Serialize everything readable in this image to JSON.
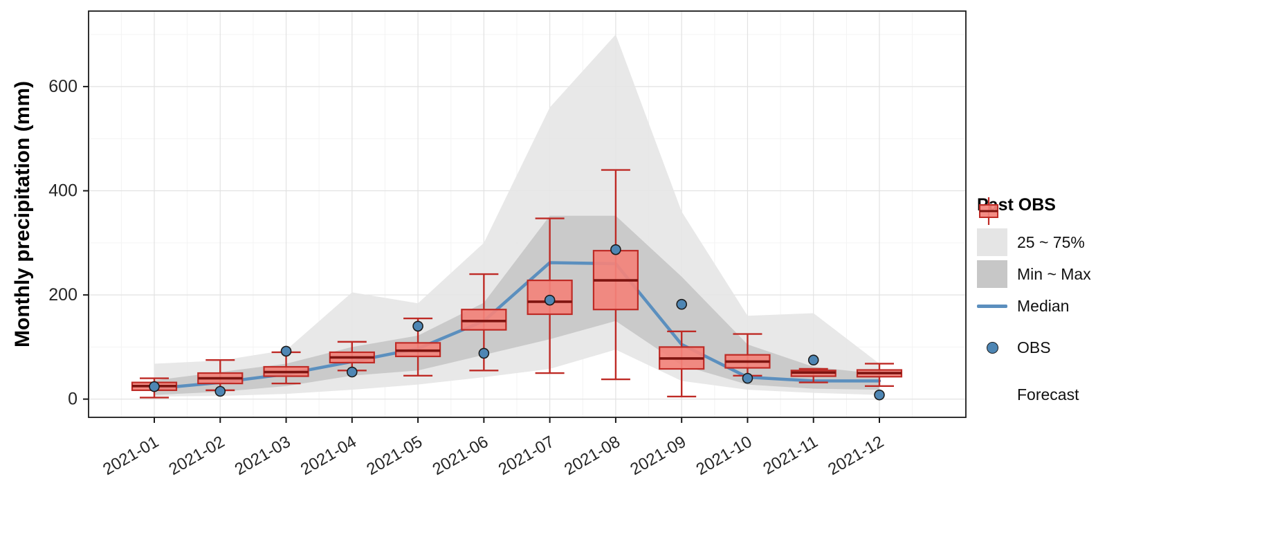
{
  "chart_data": {
    "type": "composite",
    "title": "",
    "xlabel": "",
    "ylabel": "Monthly precipitation (mm)",
    "yticks": [
      0,
      200,
      400,
      600
    ],
    "ylim": [
      -35,
      745
    ],
    "grid": true,
    "categories": [
      "2021-01",
      "2021-02",
      "2021-03",
      "2021-04",
      "2021-05",
      "2021-06",
      "2021-07",
      "2021-08",
      "2021-09",
      "2021-10",
      "2021-11",
      "2021-12"
    ],
    "past_obs": {
      "band_25_75": {
        "label": "25 ~ 75%",
        "upper": [
          68,
          74,
          94,
          205,
          184,
          300,
          560,
          700,
          360,
          160,
          165,
          68
        ],
        "lower": [
          5,
          6,
          10,
          18,
          28,
          42,
          58,
          95,
          35,
          18,
          12,
          8
        ]
      },
      "band_min_max": {
        "label": "Min ~ Max",
        "upper": [
          36,
          52,
          68,
          100,
          122,
          185,
          352,
          352,
          235,
          105,
          62,
          48
        ],
        "lower": [
          8,
          14,
          25,
          45,
          55,
          85,
          115,
          150,
          65,
          28,
          20,
          18
        ]
      },
      "median": {
        "label": "Median",
        "values": [
          20,
          32,
          48,
          72,
          97,
          150,
          262,
          260,
          105,
          42,
          35,
          35
        ]
      }
    },
    "obs": {
      "label": "OBS",
      "values": [
        24,
        15,
        92,
        52,
        140,
        88,
        190,
        287,
        182,
        40,
        75,
        8
      ]
    },
    "forecast": {
      "label": "Forecast",
      "boxes": [
        {
          "min": 3,
          "q1": 17,
          "med": 25,
          "q3": 32,
          "max": 40
        },
        {
          "min": 17,
          "q1": 30,
          "med": 40,
          "q3": 50,
          "max": 75
        },
        {
          "min": 30,
          "q1": 44,
          "med": 52,
          "q3": 62,
          "max": 90
        },
        {
          "min": 55,
          "q1": 70,
          "med": 80,
          "q3": 90,
          "max": 110
        },
        {
          "min": 45,
          "q1": 82,
          "med": 93,
          "q3": 108,
          "max": 155
        },
        {
          "min": 55,
          "q1": 133,
          "med": 150,
          "q3": 172,
          "max": 240
        },
        {
          "min": 50,
          "q1": 163,
          "med": 187,
          "q3": 228,
          "max": 347
        },
        {
          "min": 38,
          "q1": 172,
          "med": 228,
          "q3": 285,
          "max": 440
        },
        {
          "min": 5,
          "q1": 58,
          "med": 78,
          "q3": 100,
          "max": 130
        },
        {
          "min": 45,
          "q1": 60,
          "med": 72,
          "q3": 85,
          "max": 125
        },
        {
          "min": 32,
          "q1": 44,
          "med": 51,
          "q3": 55,
          "max": 58
        },
        {
          "min": 25,
          "q1": 43,
          "med": 50,
          "q3": 56,
          "max": 68
        }
      ]
    },
    "legend": {
      "title": "Past OBS",
      "items": [
        {
          "key": "band-light",
          "label": "25 ~ 75%"
        },
        {
          "key": "band-dark",
          "label": "Min ~ Max"
        },
        {
          "key": "line",
          "label": "Median"
        },
        {
          "key": "point",
          "label": "OBS"
        },
        {
          "key": "boxplot",
          "label": "Forecast"
        }
      ]
    },
    "colors": {
      "band_light": "#E5E5E5",
      "band_dark": "#C7C7C7",
      "median_line": "#5B8FBE",
      "obs_fill": "#4E86B4",
      "obs_stroke": "#1C1C1C",
      "box_fill": "#F3837B",
      "box_stroke": "#BE2A25",
      "box_median": "#7E1410",
      "grid_major": "#E2E2E2",
      "grid_minor": "#F3F3F3",
      "panel_border": "#1A1A1A",
      "tick_text": "#262626"
    }
  }
}
